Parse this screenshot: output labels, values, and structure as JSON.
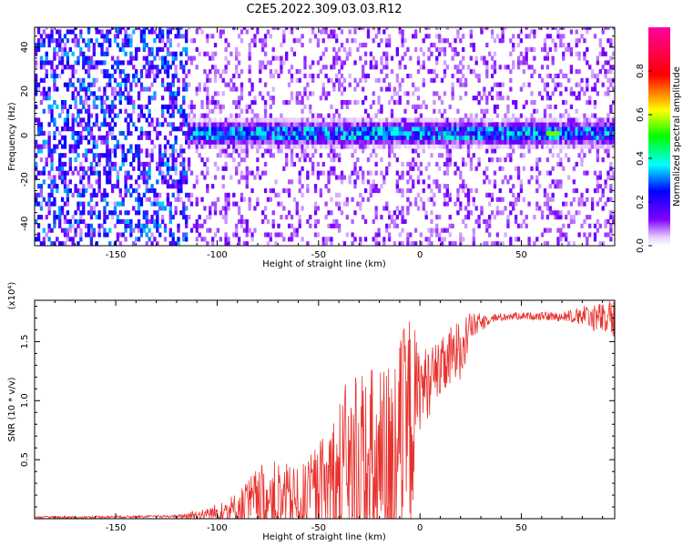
{
  "title": "C2E5.2022.309.03.03.R12",
  "chart_data": [
    {
      "type": "heatmap",
      "xlabel": "Height of straight line (km)",
      "ylabel": "Frequency (Hz)",
      "xlim": [
        -190,
        96
      ],
      "ylim": [
        -50,
        49
      ],
      "x_ticks": [
        -150,
        -100,
        -50,
        0,
        50
      ],
      "y_ticks": [
        -40,
        -20,
        0,
        20,
        40
      ],
      "colorbar": {
        "label": "Normalized spectral amplitude",
        "range": [
          0,
          1
        ],
        "ticks": [
          0.0,
          0.2,
          0.4,
          0.6,
          0.8
        ],
        "colors": [
          "#ffffff",
          "#8000ff",
          "#0000ff",
          "#00ffff",
          "#00ff00",
          "#ffff00",
          "#ff0000",
          "#ff00a0"
        ]
      },
      "features": {
        "noise_region_x": [
          -190,
          -115
        ],
        "noise_amplitude_range": [
          0.05,
          0.35
        ],
        "signal_band_center_hz": 0,
        "signal_band_x": [
          -115,
          96
        ],
        "signal_peak_amplitude": 0.55,
        "signal_peak_x": 65
      }
    },
    {
      "type": "line",
      "xlabel": "Height of straight line (km)",
      "ylabel": "SNR (10 * v/v)",
      "y_multiplier": "(x10⁴)",
      "xlim": [
        -190,
        96
      ],
      "ylim": [
        0,
        1.85
      ],
      "x_ticks": [
        -150,
        -100,
        -50,
        0,
        50
      ],
      "y_ticks": [
        0.5,
        1.0,
        1.5
      ],
      "series": [
        {
          "color": "#e8322e",
          "profile": [
            [
              -190,
              0.01,
              0.01
            ],
            [
              -150,
              0.015,
              0.01
            ],
            [
              -120,
              0.02,
              0.01
            ],
            [
              -110,
              0.03,
              0.05
            ],
            [
              -100,
              0.05,
              0.08
            ],
            [
              -90,
              0.08,
              0.15
            ],
            [
              -80,
              0.15,
              0.3
            ],
            [
              -70,
              0.15,
              0.35
            ],
            [
              -60,
              0.12,
              0.3
            ],
            [
              -50,
              0.18,
              0.45
            ],
            [
              -40,
              0.25,
              0.8
            ],
            [
              -30,
              0.3,
              1.05
            ],
            [
              -20,
              0.3,
              1.0
            ],
            [
              -10,
              0.5,
              1.05
            ],
            [
              -5,
              0.8,
              1.0
            ],
            [
              0,
              1.1,
              0.35
            ],
            [
              10,
              1.25,
              0.25
            ],
            [
              20,
              1.45,
              0.3
            ],
            [
              25,
              1.62,
              0.12
            ],
            [
              35,
              1.7,
              0.04
            ],
            [
              50,
              1.72,
              0.03
            ],
            [
              70,
              1.71,
              0.04
            ],
            [
              80,
              1.72,
              0.08
            ],
            [
              96,
              1.68,
              0.18
            ]
          ]
        }
      ]
    }
  ]
}
